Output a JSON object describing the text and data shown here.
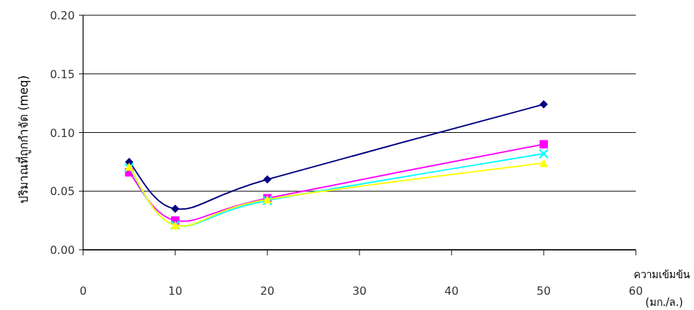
{
  "chart_data": {
    "type": "line",
    "xlabel": "ความเข้มข้น (มก./ล.)",
    "ylabel": "ปริมาณที่ถูกกำจัด (meq)",
    "x": [
      5,
      10,
      20,
      50
    ],
    "xlim": [
      0,
      60
    ],
    "xticks": [
      0,
      10,
      20,
      30,
      40,
      50,
      60
    ],
    "ylim": [
      0,
      0.2
    ],
    "yticks": [
      {
        "value": 0,
        "label": "0.00"
      },
      {
        "value": 0.05,
        "label": "0.05"
      },
      {
        "value": 0.1,
        "label": "0.10"
      },
      {
        "value": 0.15,
        "label": "0.15"
      },
      {
        "value": 0.2,
        "label": "0.20"
      }
    ],
    "grid": "y",
    "series": [
      {
        "color": "#000080",
        "marker": "diamond",
        "values": [
          0.075,
          0.035,
          0.06,
          0.124
        ]
      },
      {
        "color": "#ff00ff",
        "marker": "square",
        "values": [
          0.066,
          0.025,
          0.044,
          0.09
        ]
      },
      {
        "color": "#00ffff",
        "marker": "cross",
        "values": [
          0.07,
          0.021,
          0.042,
          0.082
        ]
      },
      {
        "color": "#ffff00",
        "marker": "triangle",
        "values": [
          0.071,
          0.021,
          0.043,
          0.074
        ]
      }
    ]
  }
}
